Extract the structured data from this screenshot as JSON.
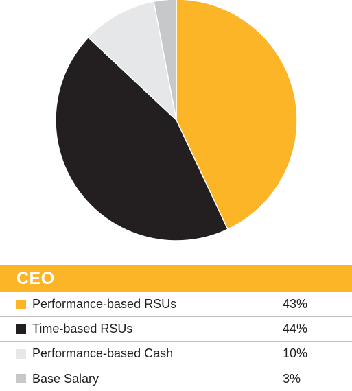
{
  "chart_data": {
    "type": "pie",
    "title": "CEO",
    "categories": [
      "Performance-based RSUs",
      "Time-based RSUs",
      "Performance-based Cash",
      "Base Salary"
    ],
    "values": [
      43,
      44,
      10,
      3
    ],
    "value_labels": [
      "43%",
      "44%",
      "10%",
      "3%"
    ],
    "colors": [
      "#fbb526",
      "#231f20",
      "#e6e7e8",
      "#c7c8ca"
    ],
    "start_angle": "12 o'clock",
    "direction": "clockwise",
    "legend_position": "bottom"
  },
  "header_color": "#fbb526"
}
